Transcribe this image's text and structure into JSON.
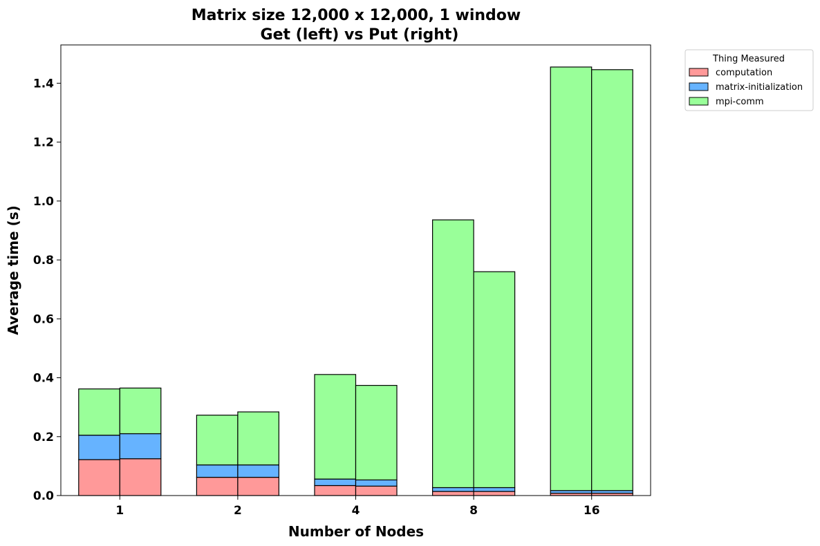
{
  "chart_data": {
    "type": "bar",
    "stacked": true,
    "title_line1": "Matrix size 12,000 x 12,000, 1 window",
    "title_line2": "Get (left) vs Put (right)",
    "xlabel": "Number of Nodes",
    "ylabel": "Average time (s)",
    "categories": [
      "1",
      "2",
      "4",
      "8",
      "16"
    ],
    "ylim": [
      0,
      1.53
    ],
    "yticks": [
      "0.0",
      "0.2",
      "0.4",
      "0.6",
      "0.8",
      "1.0",
      "1.2",
      "1.4"
    ],
    "legend": {
      "title": "Thing Measured",
      "placement": "outside-top-right",
      "entries": [
        "computation",
        "matrix-initialization",
        "mpi-comm"
      ]
    },
    "groups": [
      {
        "name": "Get",
        "series": [
          {
            "name": "computation",
            "color": "#ff9999",
            "values": [
              0.122,
              0.062,
              0.034,
              0.014,
              0.008
            ]
          },
          {
            "name": "matrix-initialization",
            "color": "#66b3ff",
            "values": [
              0.083,
              0.042,
              0.022,
              0.013,
              0.009
            ]
          },
          {
            "name": "mpi-comm",
            "color": "#99ff99",
            "values": [
              0.157,
              0.169,
              0.355,
              0.909,
              1.438
            ]
          }
        ]
      },
      {
        "name": "Put",
        "series": [
          {
            "name": "computation",
            "color": "#ff9999",
            "values": [
              0.125,
              0.062,
              0.032,
              0.014,
              0.008
            ]
          },
          {
            "name": "matrix-initialization",
            "color": "#66b3ff",
            "values": [
              0.085,
              0.042,
              0.021,
              0.013,
              0.009
            ]
          },
          {
            "name": "mpi-comm",
            "color": "#99ff99",
            "values": [
              0.155,
              0.18,
              0.321,
              0.733,
              1.429
            ]
          }
        ]
      }
    ]
  }
}
